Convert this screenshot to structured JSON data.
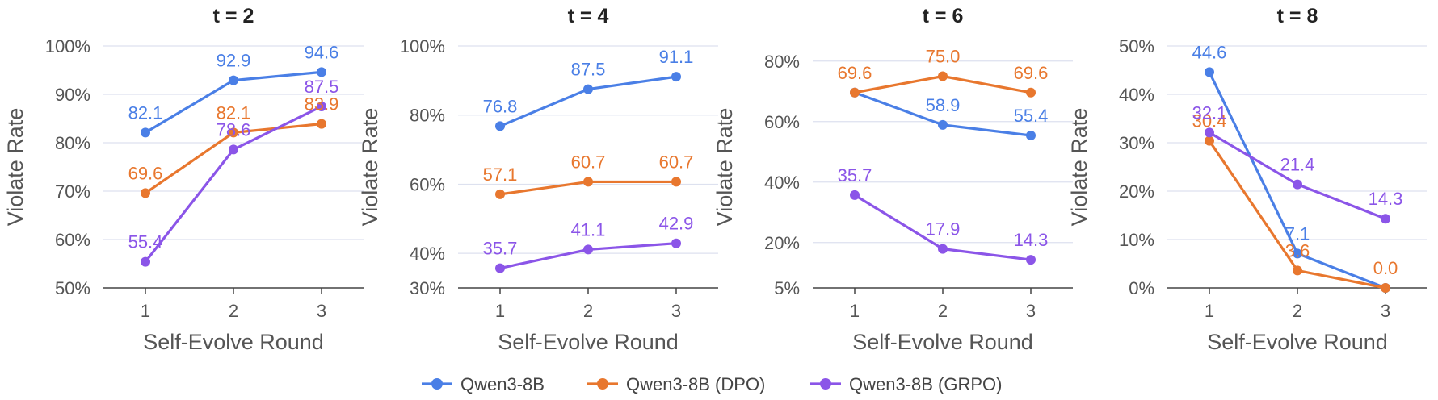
{
  "chart_data": [
    {
      "type": "line",
      "title": "t = 2",
      "xlabel": "Self-Evolve Round",
      "ylabel": "Violate Rate",
      "x": [
        1,
        2,
        3
      ],
      "x_tick_labels": [
        "1",
        "2",
        "3"
      ],
      "ylim": [
        50,
        100
      ],
      "y_ticks": [
        50,
        60,
        70,
        80,
        90,
        100
      ],
      "y_tick_labels": [
        "50%",
        "60%",
        "70%",
        "80%",
        "90%",
        "100%"
      ],
      "grid": true,
      "series": [
        {
          "name": "Qwen3-8B",
          "values": [
            82.1,
            92.9,
            94.6
          ],
          "labels": [
            "82.1",
            "92.9",
            "94.6"
          ]
        },
        {
          "name": "Qwen3-8B (DPO)",
          "values": [
            69.6,
            82.1,
            83.9
          ],
          "labels": [
            "69.6",
            "82.1",
            "83.9"
          ]
        },
        {
          "name": "Qwen3-8B (GRPO)",
          "values": [
            55.4,
            78.6,
            87.5
          ],
          "labels": [
            "55.4",
            "78.6",
            "87.5"
          ]
        }
      ]
    },
    {
      "type": "line",
      "title": "t = 4",
      "xlabel": "Self-Evolve Round",
      "ylabel": "Violate Rate",
      "x": [
        1,
        2,
        3
      ],
      "x_tick_labels": [
        "1",
        "2",
        "3"
      ],
      "ylim": [
        30,
        100
      ],
      "y_ticks": [
        30,
        40,
        60,
        80,
        100
      ],
      "y_tick_labels": [
        "30%",
        "40%",
        "60%",
        "80%",
        "100%"
      ],
      "grid": true,
      "series": [
        {
          "name": "Qwen3-8B",
          "values": [
            76.8,
            87.5,
            91.1
          ],
          "labels": [
            "76.8",
            "87.5",
            "91.1"
          ]
        },
        {
          "name": "Qwen3-8B (DPO)",
          "values": [
            57.1,
            60.7,
            60.7
          ],
          "labels": [
            "57.1",
            "60.7",
            "60.7"
          ]
        },
        {
          "name": "Qwen3-8B (GRPO)",
          "values": [
            35.7,
            41.1,
            42.9
          ],
          "labels": [
            "35.7",
            "41.1",
            "42.9"
          ]
        }
      ]
    },
    {
      "type": "line",
      "title": "t = 6",
      "xlabel": "Self-Evolve Round",
      "ylabel": "Violate Rate",
      "x": [
        1,
        2,
        3
      ],
      "x_tick_labels": [
        "1",
        "2",
        "3"
      ],
      "ylim": [
        5,
        85
      ],
      "y_ticks": [
        5,
        20,
        40,
        60,
        80
      ],
      "y_tick_labels": [
        "5%",
        "20%",
        "40%",
        "60%",
        "80%"
      ],
      "grid": true,
      "series": [
        {
          "name": "Qwen3-8B",
          "values": [
            69.6,
            58.9,
            55.4
          ],
          "labels": [
            "",
            "58.9",
            "55.4"
          ]
        },
        {
          "name": "Qwen3-8B (DPO)",
          "values": [
            69.6,
            75.0,
            69.6
          ],
          "labels": [
            "69.6",
            "75.0",
            "69.6"
          ]
        },
        {
          "name": "Qwen3-8B (GRPO)",
          "values": [
            35.7,
            17.9,
            14.3
          ],
          "labels": [
            "35.7",
            "17.9",
            "14.3"
          ]
        }
      ]
    },
    {
      "type": "line",
      "title": "t = 8",
      "xlabel": "Self-Evolve Round",
      "ylabel": "Violate Rate",
      "x": [
        1,
        2,
        3
      ],
      "x_tick_labels": [
        "1",
        "2",
        "3"
      ],
      "ylim": [
        0,
        50
      ],
      "y_ticks": [
        0,
        10,
        20,
        30,
        40,
        50
      ],
      "y_tick_labels": [
        "0%",
        "10%",
        "20%",
        "30%",
        "40%",
        "50%"
      ],
      "grid": true,
      "series": [
        {
          "name": "Qwen3-8B",
          "values": [
            44.6,
            7.1,
            0.0
          ],
          "labels": [
            "44.6",
            "7.1",
            ""
          ]
        },
        {
          "name": "Qwen3-8B (DPO)",
          "values": [
            30.4,
            3.6,
            0.0
          ],
          "labels": [
            "30.4",
            "3.6",
            "0.0"
          ]
        },
        {
          "name": "Qwen3-8B (GRPO)",
          "values": [
            32.1,
            21.4,
            14.3
          ],
          "labels": [
            "32.1",
            "21.4",
            "14.3"
          ]
        }
      ]
    }
  ],
  "legend": {
    "placement": "bottom-center",
    "items": [
      {
        "label": "Qwen3-8B",
        "color": "#4a7fe6"
      },
      {
        "label": "Qwen3-8B (DPO)",
        "color": "#e8772e"
      },
      {
        "label": "Qwen3-8B (GRPO)",
        "color": "#8b55e8"
      }
    ]
  },
  "colors": {
    "series": [
      "#4a7fe6",
      "#e8772e",
      "#8b55e8"
    ],
    "grid": "#dde1ef",
    "axis": "#444444",
    "text": "#555555",
    "title": "#222222"
  }
}
